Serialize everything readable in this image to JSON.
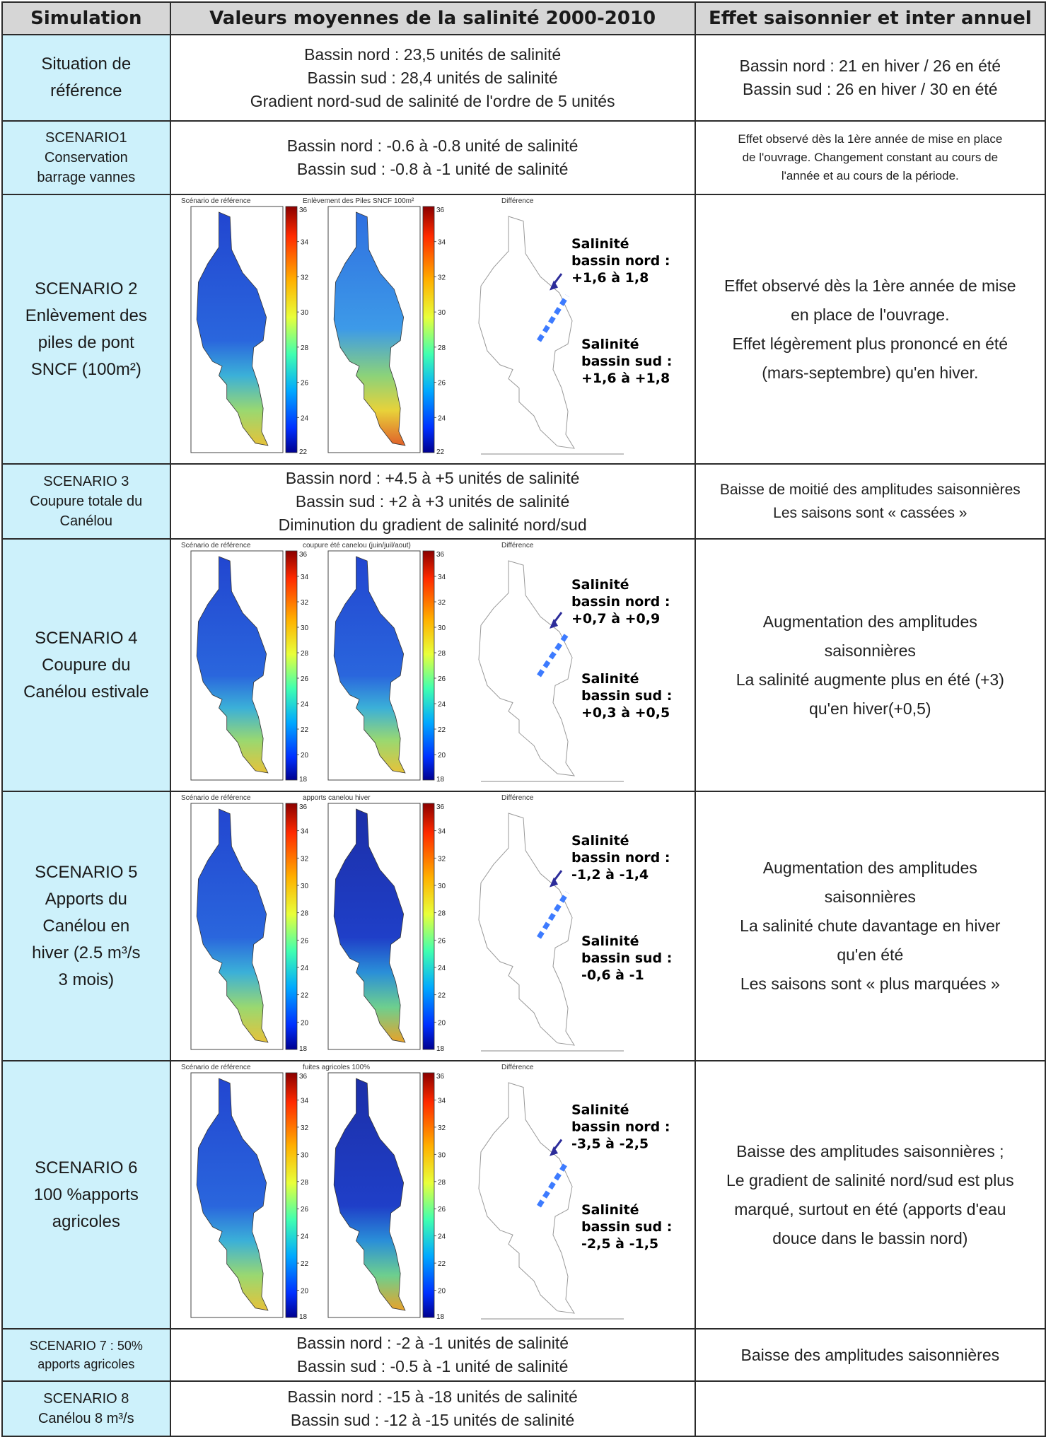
{
  "headers": {
    "simulation": "Simulation",
    "values": "Valeurs moyennes de la salinité 2000-2010",
    "effect": "Effet saisonnier et inter annuel"
  },
  "rows": [
    {
      "simulation": [
        "Situation de",
        "référence"
      ],
      "values": [
        "Bassin nord : 23,5 unités de salinité",
        "Bassin sud : 28,4 unités de salinité",
        "Gradient nord-sud de salinité de l'ordre de 5 unités"
      ],
      "effect": [
        "Bassin nord : 21 en hiver / 26 en été",
        "Bassin sud : 26 en hiver / 30 en été"
      ]
    },
    {
      "simulation": [
        "SCENARIO1",
        "Conservation",
        "barrage vannes"
      ],
      "values": [
        "Bassin nord : -0.6 à -0.8 unité de salinité",
        "Bassin sud : -0.8 à -1 unité de salinité"
      ],
      "effect": [
        "Effet observé dès la 1ère année de mise en place",
        "de l'ouvrage. Changement constant au cours de",
        "l'année et au cours de la période."
      ]
    },
    {
      "simulation": [
        "SCENARIO 2",
        "Enlèvement des",
        "piles de pont",
        "SNCF (100m²)"
      ],
      "figure": {
        "panel1_title": "Scénario de référence",
        "panel2_title": "Enlèvement des Piles SNCF 100m²",
        "panel3_title": "Différence",
        "scale_max": "36",
        "scale_min": "22",
        "ticks": [
          "34",
          "32",
          "30",
          "28",
          "26",
          "24"
        ],
        "north_label": [
          "Salinité",
          "bassin nord :",
          "+1,6 à 1,8"
        ],
        "south_label": [
          "Salinité",
          "bassin sud :",
          "+1,6 à +1,8"
        ]
      },
      "effect": [
        "Effet observé dès la 1ère année de mise",
        "en place de l'ouvrage.",
        "Effet légèrement plus prononcé en été",
        "(mars-septembre) qu'en hiver."
      ]
    },
    {
      "simulation": [
        "SCENARIO 3",
        "Coupure totale du",
        "Canélou"
      ],
      "values": [
        "Bassin nord : +4.5 à +5 unités de salinité",
        "Bassin sud : +2 à +3 unités de salinité",
        "Diminution du gradient de salinité nord/sud"
      ],
      "effect": [
        "Baisse de moitié des amplitudes saisonnières",
        "Les saisons sont « cassées »"
      ]
    },
    {
      "simulation": [
        "SCENARIO 4",
        "Coupure du",
        "Canélou estivale"
      ],
      "figure": {
        "panel1_title": "Scénario de référence",
        "panel2_title": "coupure été canelou (juin/juil/aout)",
        "panel3_title": "Différence",
        "scale_max": "36",
        "scale_min": "18",
        "ticks": [
          "34",
          "32",
          "30",
          "28",
          "26",
          "24",
          "22",
          "20"
        ],
        "north_label": [
          "Salinité",
          "bassin nord :",
          "+0,7 à +0,9"
        ],
        "south_label": [
          "Salinité",
          "bassin sud :",
          "+0,3 à +0,5"
        ]
      },
      "effect": [
        "Augmentation des amplitudes",
        "saisonnières",
        "La salinité augmente plus en été (+3)",
        "qu'en hiver(+0,5)"
      ]
    },
    {
      "simulation": [
        "SCENARIO 5",
        "Apports du",
        "Canélou en",
        "hiver (2.5 m³/s",
        "3 mois)"
      ],
      "figure": {
        "panel1_title": "Scénario de référence",
        "panel2_title": "apports canelou hiver",
        "panel3_title": "Différence",
        "scale_max": "36",
        "scale_min": "18",
        "ticks": [
          "34",
          "32",
          "30",
          "28",
          "26",
          "24",
          "22",
          "20"
        ],
        "north_label": [
          "Salinité",
          "bassin nord :",
          "-1,2 à -1,4"
        ],
        "south_label": [
          "Salinité",
          "bassin sud :",
          "-0,6 à -1"
        ]
      },
      "effect": [
        "Augmentation des amplitudes",
        "saisonnières",
        "La salinité chute davantage en hiver",
        "qu'en été",
        "Les saisons sont « plus marquées »"
      ]
    },
    {
      "simulation": [
        "SCENARIO 6",
        "100 %apports",
        "agricoles"
      ],
      "figure": {
        "panel1_title": "Scénario de référence",
        "panel2_title": "fuites agricoles 100%",
        "panel3_title": "Différence",
        "scale_max": "36",
        "scale_min": "18",
        "ticks": [
          "34",
          "32",
          "30",
          "28",
          "26",
          "24",
          "22",
          "20"
        ],
        "north_label": [
          "Salinité",
          "bassin nord :",
          "-3,5 à -2,5"
        ],
        "south_label": [
          "Salinité",
          "bassin sud :",
          "-2,5 à -1,5"
        ]
      },
      "effect": [
        "Baisse des amplitudes saisonnières ;",
        "Le gradient de salinité nord/sud est plus",
        "marqué, surtout en été (apports d'eau",
        "douce dans le bassin nord)"
      ]
    },
    {
      "simulation": [
        "SCENARIO 7 : 50%",
        "apports agricoles"
      ],
      "values": [
        "Bassin nord : -2 à -1 unités de salinité",
        "Bassin sud : -0.5 à -1 unité de salinité"
      ],
      "effect": [
        "Baisse des amplitudes saisonnières"
      ]
    },
    {
      "simulation": [
        "SCENARIO 8",
        "Canélou 8 m³/s"
      ],
      "values": [
        "Bassin nord : -15 à -18 unités de salinité",
        "Bassin sud : -12 à -15 unités de salinité"
      ],
      "effect": []
    }
  ]
}
